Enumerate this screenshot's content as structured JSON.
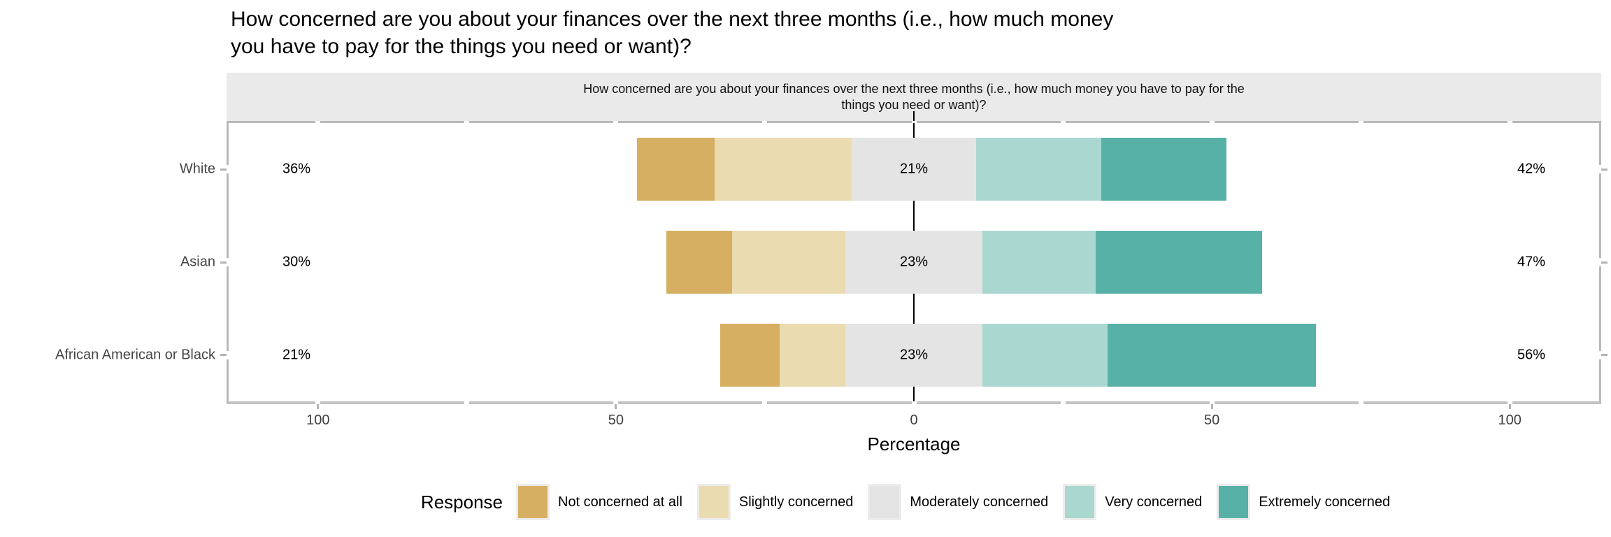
{
  "title": "How concerned are you about your finances over the next three months (i.e., how much money\nyou have to pay for the things you need or want)?",
  "facet_strip": "How concerned are you about your finances over the next three months (i.e., how much money you have to pay for the\nthings you need or want)?",
  "axis": {
    "x_label": "Percentage",
    "labeled_ticks": [
      {
        "value": -100,
        "label": "100"
      },
      {
        "value": -50,
        "label": "50"
      },
      {
        "value": 0,
        "label": "0"
      },
      {
        "value": 50,
        "label": "50"
      },
      {
        "value": 100,
        "label": "100"
      }
    ],
    "minor_break_values": [
      -100,
      -75,
      -50,
      -25,
      0,
      25,
      50,
      75,
      100
    ],
    "range": [
      -115,
      115
    ]
  },
  "legend": {
    "title": "Response",
    "items": [
      {
        "label": "Not concerned at all",
        "color": "#D7AF62"
      },
      {
        "label": "Slightly concerned",
        "color": "#EADBB0"
      },
      {
        "label": "Moderately concerned",
        "color": "#E4E4E4"
      },
      {
        "label": "Very concerned",
        "color": "#ABD7D1"
      },
      {
        "label": "Extremely concerned",
        "color": "#58B1A7"
      }
    ]
  },
  "chart_data": {
    "type": "bar",
    "subtype": "diverging-stacked-likert",
    "orientation": "horizontal",
    "title": "How concerned are you about your finances over the next three months (i.e., how much money you have to pay for the things you need or want)?",
    "xlabel": "Percentage",
    "xlim": [
      -115,
      115
    ],
    "grid": false,
    "legend_position": "bottom",
    "categories": [
      "White",
      "Asian",
      "African American or Black"
    ],
    "series": [
      {
        "name": "Not concerned at all",
        "values": [
          13,
          11,
          10
        ]
      },
      {
        "name": "Slightly concerned",
        "values": [
          23,
          19,
          11
        ]
      },
      {
        "name": "Moderately concerned",
        "values": [
          21,
          23,
          23
        ]
      },
      {
        "name": "Very concerned",
        "values": [
          21,
          19,
          21
        ]
      },
      {
        "name": "Extremely concerned",
        "values": [
          21,
          28,
          35
        ]
      }
    ],
    "note": "Moderately concerned segment is centered on zero; low/high totals shown as text labels",
    "displayed_labels": {
      "low": [
        "36%",
        "30%",
        "21%"
      ],
      "mid": [
        "21%",
        "23%",
        "23%"
      ],
      "high": [
        "42%",
        "47%",
        "56%"
      ]
    }
  },
  "colors": {
    "strip_background": "#EAEAEA",
    "panel_border": "#b9b9b9",
    "axis_text": "#3d3d3d",
    "y_label_text": "#454545",
    "zero_line": "#000000"
  }
}
